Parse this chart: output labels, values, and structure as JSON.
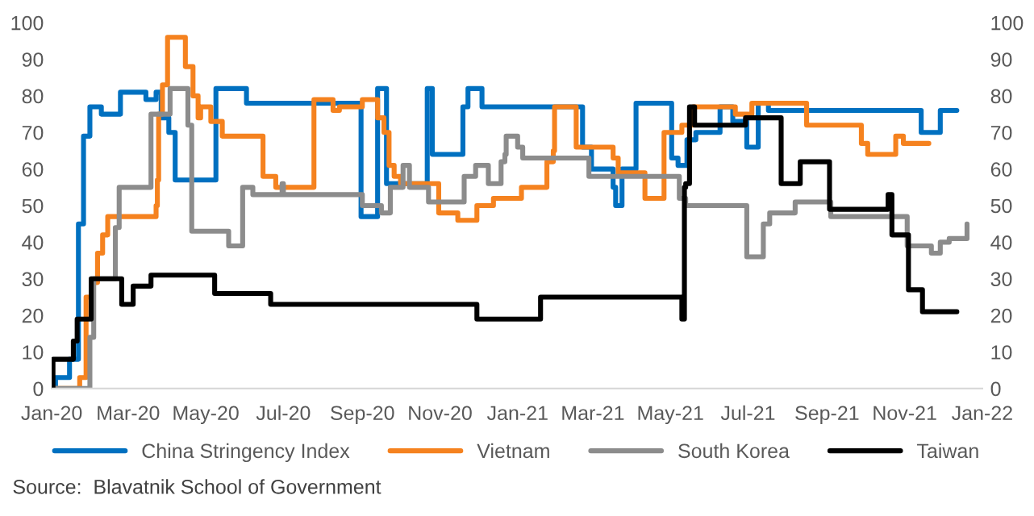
{
  "chart_data": {
    "type": "step",
    "xlim": [
      "2020-01-01",
      "2022-01-01"
    ],
    "xticks": [
      {
        "value": "2020-01-01",
        "label": "Jan-20"
      },
      {
        "value": "2020-03-01",
        "label": "Mar-20"
      },
      {
        "value": "2020-05-01",
        "label": "May-20"
      },
      {
        "value": "2020-07-01",
        "label": "Jul-20"
      },
      {
        "value": "2020-09-01",
        "label": "Sep-20"
      },
      {
        "value": "2020-11-01",
        "label": "Nov-20"
      },
      {
        "value": "2021-01-01",
        "label": "Jan-21"
      },
      {
        "value": "2021-03-01",
        "label": "Mar-21"
      },
      {
        "value": "2021-05-01",
        "label": "May-21"
      },
      {
        "value": "2021-07-01",
        "label": "Jul-21"
      },
      {
        "value": "2021-09-01",
        "label": "Sep-21"
      },
      {
        "value": "2021-11-01",
        "label": "Nov-21"
      },
      {
        "value": "2022-01-01",
        "label": "Jan-22"
      }
    ],
    "ylim": [
      0,
      100
    ],
    "yticks": [
      0,
      10,
      20,
      30,
      40,
      50,
      60,
      70,
      80,
      90,
      100
    ],
    "y2lim": [
      0,
      100
    ],
    "y2ticks": [
      0,
      10,
      20,
      30,
      40,
      50,
      60,
      70,
      80,
      90,
      100
    ],
    "grid": false,
    "legend": "bottom",
    "annotations": [
      "Source:  Blavatnik School of Government"
    ],
    "series": [
      {
        "name": "China Stringency Index",
        "color": "#0070c0",
        "x": [
          "2020-01-02",
          "2020-01-04",
          "2020-01-15",
          "2020-01-22",
          "2020-01-26",
          "2020-01-31",
          "2020-02-09",
          "2020-02-24",
          "2020-03-15",
          "2020-03-23",
          "2020-03-27",
          "2020-04-02",
          "2020-04-07",
          "2020-05-09",
          "2020-06-02",
          "2020-08-31",
          "2020-09-13",
          "2020-09-20",
          "2020-10-22",
          "2020-10-26",
          "2020-11-19",
          "2020-11-23",
          "2020-12-04",
          "2021-02-21",
          "2021-02-28",
          "2021-03-17",
          "2021-03-19",
          "2021-03-24",
          "2021-04-04",
          "2021-05-02",
          "2021-05-07",
          "2021-05-14",
          "2021-05-21",
          "2021-06-09",
          "2021-06-19",
          "2021-06-30",
          "2021-07-09",
          "2021-07-17",
          "2021-11-14",
          "2021-11-29",
          "2021-12-12"
        ],
        "values": [
          0,
          3,
          8,
          45,
          69,
          77,
          75,
          81,
          79,
          81,
          74,
          70,
          57,
          82,
          78,
          47,
          82,
          56,
          82,
          64,
          77,
          82,
          77,
          66,
          60,
          55,
          50,
          60,
          78,
          63,
          61,
          68,
          70,
          77,
          73,
          66,
          78,
          76,
          70,
          76,
          76
        ]
      },
      {
        "name": "Vietnam",
        "color": "#f5821f",
        "x": [
          "2020-01-01",
          "2020-01-23",
          "2020-01-28",
          "2020-02-01",
          "2020-02-06",
          "2020-02-10",
          "2020-02-14",
          "2020-03-23",
          "2020-03-24",
          "2020-03-25",
          "2020-03-28",
          "2020-04-01",
          "2020-04-15",
          "2020-04-21",
          "2020-04-25",
          "2020-04-27",
          "2020-05-05",
          "2020-05-14",
          "2020-06-15",
          "2020-06-25",
          "2020-07-25",
          "2020-08-09",
          "2020-08-14",
          "2020-09-01",
          "2020-09-13",
          "2020-09-18",
          "2020-09-22",
          "2020-09-26",
          "2020-10-01",
          "2020-10-31",
          "2020-11-15",
          "2020-11-30",
          "2020-12-13",
          "2021-01-04",
          "2021-01-24",
          "2021-01-29",
          "2021-01-30",
          "2021-02-16",
          "2021-03-17",
          "2021-03-21",
          "2021-04-11",
          "2021-04-26",
          "2021-05-10",
          "2021-05-19",
          "2021-06-21",
          "2021-07-04",
          "2021-08-16",
          "2021-09-28",
          "2021-10-03",
          "2021-10-25",
          "2021-10-31",
          "2021-11-20"
        ],
        "values": [
          0,
          3,
          25,
          29,
          37,
          42,
          47,
          50,
          57,
          75,
          83,
          96,
          88,
          80,
          74,
          77,
          73,
          69,
          58,
          55,
          79,
          76,
          77,
          79,
          74,
          70,
          61,
          58,
          56,
          48,
          46,
          50,
          52,
          55,
          62,
          65,
          77,
          66,
          63,
          59,
          52,
          70,
          72,
          77,
          75,
          78,
          72,
          67,
          64,
          69,
          67,
          67
        ]
      },
      {
        "name": "South Korea",
        "color": "#8c8c8c",
        "x": [
          "2020-01-01",
          "2020-01-30",
          "2020-01-31",
          "2020-02-03",
          "2020-02-20",
          "2020-02-23",
          "2020-03-19",
          "2020-04-03",
          "2020-04-17",
          "2020-04-20",
          "2020-05-19",
          "2020-05-30",
          "2020-06-07",
          "2020-06-30",
          "2020-07-01",
          "2020-09-01",
          "2020-09-16",
          "2020-09-23",
          "2020-10-03",
          "2020-10-08",
          "2020-10-23",
          "2020-11-20",
          "2020-11-29",
          "2020-12-09",
          "2020-12-19",
          "2020-12-22",
          "2020-12-23",
          "2021-01-01",
          "2021-01-05",
          "2021-02-26",
          "2021-05-08",
          "2021-05-13",
          "2021-06-30",
          "2021-07-13",
          "2021-07-18",
          "2021-08-07",
          "2021-09-04",
          "2021-11-03",
          "2021-11-22",
          "2021-11-29",
          "2021-12-06",
          "2021-12-20"
        ],
        "values": [
          0,
          0,
          14,
          30,
          44,
          55,
          75,
          82,
          72,
          43,
          39,
          55,
          53,
          56,
          53,
          50,
          48,
          55,
          61,
          55,
          51,
          58,
          61,
          56,
          62,
          64,
          69,
          66,
          63,
          58,
          52,
          50,
          36,
          45,
          48,
          51,
          47,
          39,
          37,
          40,
          41,
          45
        ]
      },
      {
        "name": "Taiwan",
        "color": "#000000",
        "x": [
          "2020-01-01",
          "2020-01-02",
          "2020-01-18",
          "2020-01-21",
          "2020-02-01",
          "2020-02-25",
          "2020-03-05",
          "2020-03-19",
          "2020-05-08",
          "2020-06-21",
          "2020-11-30",
          "2021-01-19",
          "2021-05-10",
          "2021-05-12",
          "2021-05-13",
          "2021-05-16",
          "2021-05-20",
          "2021-06-29",
          "2021-07-27",
          "2021-08-11",
          "2021-09-03",
          "2021-10-19",
          "2021-10-22",
          "2021-11-04",
          "2021-11-15",
          "2021-12-12"
        ],
        "values": [
          0,
          8,
          13,
          19,
          30,
          23,
          28,
          31,
          26,
          23,
          19,
          25,
          19,
          55,
          56,
          77,
          72,
          74,
          56,
          62,
          49,
          53,
          42,
          27,
          21,
          21
        ]
      }
    ]
  }
}
